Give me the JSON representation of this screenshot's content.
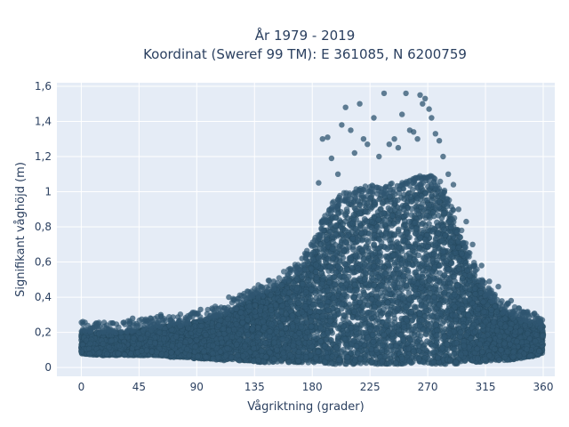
{
  "chart_data": {
    "type": "scatter",
    "title": "År 1979 - 2019",
    "subtitle": "Koordinat (Sweref 99 TM): E 361085, N 6200759",
    "xlabel": "Vågriktning (grader)",
    "ylabel": "Signifikant våghöjd (m)",
    "xlim": [
      -19,
      369
    ],
    "ylim": [
      -0.05,
      1.62
    ],
    "x_ticks": [
      0,
      45,
      90,
      135,
      180,
      225,
      270,
      315,
      360
    ],
    "x_tick_labels": [
      "0",
      "45",
      "90",
      "135",
      "180",
      "225",
      "270",
      "315",
      "360"
    ],
    "y_ticks": [
      0,
      0.2,
      0.4,
      0.6,
      0.8,
      1.0,
      1.2,
      1.4,
      1.6
    ],
    "y_tick_labels": [
      "0",
      "0,2",
      "0,4",
      "0,6",
      "0,8",
      "1",
      "1,2",
      "1,4",
      "1,6"
    ],
    "grid": true,
    "marker_color": "#2f5670",
    "plot_background": "#e5ecf6",
    "envelope": {
      "x": [
        0,
        10,
        20,
        30,
        40,
        50,
        60,
        70,
        80,
        90,
        100,
        110,
        120,
        130,
        140,
        150,
        160,
        170,
        180,
        190,
        200,
        210,
        220,
        230,
        240,
        250,
        260,
        270,
        280,
        290,
        300,
        310,
        320,
        330,
        340,
        350,
        360
      ],
      "upper": [
        0.21,
        0.2,
        0.2,
        0.2,
        0.21,
        0.22,
        0.23,
        0.24,
        0.25,
        0.26,
        0.28,
        0.3,
        0.34,
        0.38,
        0.42,
        0.46,
        0.5,
        0.55,
        0.65,
        0.82,
        0.92,
        0.95,
        0.97,
        0.98,
        0.99,
        1.0,
        1.02,
        1.05,
        1.0,
        0.85,
        0.65,
        0.48,
        0.38,
        0.32,
        0.28,
        0.26,
        0.24
      ],
      "lower": [
        0.08,
        0.07,
        0.07,
        0.07,
        0.07,
        0.07,
        0.07,
        0.06,
        0.06,
        0.05,
        0.05,
        0.04,
        0.04,
        0.04,
        0.03,
        0.03,
        0.03,
        0.03,
        0.02,
        0.02,
        0.02,
        0.02,
        0.02,
        0.02,
        0.02,
        0.02,
        0.02,
        0.02,
        0.02,
        0.02,
        0.03,
        0.03,
        0.04,
        0.04,
        0.05,
        0.06,
        0.08
      ]
    },
    "outliers": [
      [
        40,
        0.28
      ],
      [
        62,
        0.3
      ],
      [
        85,
        0.3
      ],
      [
        93,
        0.33
      ],
      [
        115,
        0.4
      ],
      [
        140,
        0.46
      ],
      [
        150,
        0.49
      ],
      [
        172,
        0.62
      ],
      [
        185,
        1.05
      ],
      [
        188,
        1.3
      ],
      [
        192,
        1.31
      ],
      [
        195,
        1.19
      ],
      [
        200,
        1.1
      ],
      [
        203,
        1.38
      ],
      [
        206,
        1.48
      ],
      [
        210,
        1.35
      ],
      [
        213,
        1.22
      ],
      [
        217,
        1.5
      ],
      [
        220,
        1.3
      ],
      [
        223,
        1.27
      ],
      [
        228,
        1.42
      ],
      [
        232,
        1.2
      ],
      [
        236,
        1.56
      ],
      [
        240,
        1.27
      ],
      [
        244,
        1.3
      ],
      [
        247,
        1.25
      ],
      [
        250,
        1.44
      ],
      [
        253,
        1.56
      ],
      [
        256,
        1.35
      ],
      [
        259,
        1.34
      ],
      [
        262,
        1.3
      ],
      [
        264,
        1.55
      ],
      [
        266,
        1.5
      ],
      [
        268,
        1.53
      ],
      [
        271,
        1.47
      ],
      [
        273,
        1.42
      ],
      [
        276,
        1.33
      ],
      [
        279,
        1.29
      ],
      [
        282,
        1.2
      ],
      [
        286,
        1.1
      ],
      [
        290,
        1.04
      ],
      [
        294,
        0.9
      ],
      [
        300,
        0.83
      ],
      [
        305,
        0.7
      ],
      [
        312,
        0.58
      ],
      [
        318,
        0.49
      ],
      [
        325,
        0.46
      ],
      [
        335,
        0.38
      ],
      [
        348,
        0.3
      ],
      [
        356,
        0.28
      ]
    ]
  }
}
